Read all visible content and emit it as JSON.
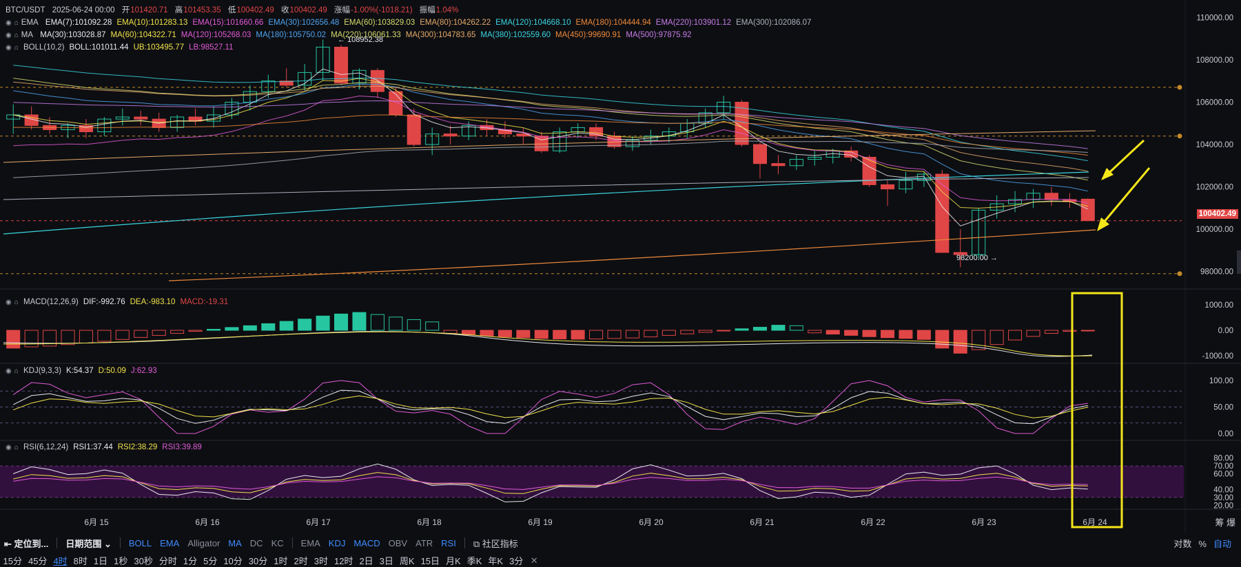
{
  "header": {
    "symbol": "BTC/USDT",
    "date": "2025-06-24 00:00",
    "open_label": "开",
    "open": "101420.71",
    "high_label": "高",
    "high": "101453.35",
    "low_label": "低",
    "low": "100402.49",
    "close_label": "收",
    "close": "100402.49",
    "change_label": "涨幅",
    "change": "-1.00%(-1018.21)",
    "amp_label": "振幅",
    "amp": "1.04%"
  },
  "ema_line": {
    "name": "EMA",
    "items": [
      {
        "text": "EMA(7):101092.28",
        "color": "#e8eaef"
      },
      {
        "text": "EMA(10):101283.13",
        "color": "#f1e34a"
      },
      {
        "text": "EMA(15):101660.66",
        "color": "#e05bd6"
      },
      {
        "text": "EMA(30):102656.48",
        "color": "#4fa4ef"
      },
      {
        "text": "EMA(60):103829.03",
        "color": "#d6dc6e"
      },
      {
        "text": "EMA(80):104262.22",
        "color": "#e5aa6b"
      },
      {
        "text": "EMA(120):104668.10",
        "color": "#3ad6e0"
      },
      {
        "text": "EMA(180):104444.94",
        "color": "#f08a3a"
      },
      {
        "text": "EMA(220):103901.12",
        "color": "#c77ee8"
      },
      {
        "text": "EMA(300):102086.07",
        "color": "#aab0ba"
      }
    ]
  },
  "ma_line": {
    "name": "MA",
    "items": [
      {
        "text": "MA(30):103028.87",
        "color": "#e8eaef"
      },
      {
        "text": "MA(60):104322.71",
        "color": "#f1e34a"
      },
      {
        "text": "MA(120):105268.03",
        "color": "#e05bd6"
      },
      {
        "text": "MA(180):105750.02",
        "color": "#4fa4ef"
      },
      {
        "text": "MA(220):106061.33",
        "color": "#d6dc6e"
      },
      {
        "text": "MA(300):104783.65",
        "color": "#e5aa6b"
      },
      {
        "text": "MA(380):102559.60",
        "color": "#3ad6e0"
      },
      {
        "text": "MA(450):99690.91",
        "color": "#f08a3a"
      },
      {
        "text": "MA(500):97875.92",
        "color": "#c77ee8"
      }
    ]
  },
  "boll_line": {
    "items": [
      {
        "text": "BOLL(10,2)",
        "color": "#c9ccd4"
      },
      {
        "text": "BOLL:101011.44",
        "color": "#e8eaef"
      },
      {
        "text": "UB:103495.77",
        "color": "#f1e34a"
      },
      {
        "text": "LB:98527.11",
        "color": "#e05bd6"
      }
    ]
  },
  "macd_line": {
    "items": [
      {
        "text": "MACD(12,26,9)",
        "color": "#c9ccd4"
      },
      {
        "text": "DIF:-992.76",
        "color": "#e8eaef"
      },
      {
        "text": "DEA:-983.10",
        "color": "#f1e34a"
      },
      {
        "text": "MACD:-19.31",
        "color": "#e04646"
      }
    ]
  },
  "kdj_line": {
    "items": [
      {
        "text": "KDJ(9,3,3)",
        "color": "#c9ccd4"
      },
      {
        "text": "K:54.37",
        "color": "#e8eaef"
      },
      {
        "text": "D:50.09",
        "color": "#f1e34a"
      },
      {
        "text": "J:62.93",
        "color": "#e05bd6"
      }
    ]
  },
  "rsi_line": {
    "items": [
      {
        "text": "RSI(6,12,24)",
        "color": "#c9ccd4"
      },
      {
        "text": "RSI1:37.44",
        "color": "#e8eaef"
      },
      {
        "text": "RSI2:38.29",
        "color": "#f1e34a"
      },
      {
        "text": "RSI3:39.89",
        "color": "#e05bd6"
      }
    ]
  },
  "price_axis": [
    "110000.00",
    "108000.00",
    "106000.00",
    "104000.00",
    "102000.00",
    "100000.00",
    "98000.00"
  ],
  "macd_axis": [
    "1000.00",
    "0.00",
    "-1000.00"
  ],
  "kdj_axis": [
    "100.00",
    "50.00",
    "0.00"
  ],
  "rsi_axis": [
    "80.00",
    "70.00",
    "60.00",
    "40.00",
    "30.00",
    "20.00"
  ],
  "x_axis": [
    "6月 15",
    "6月 16",
    "6月 17",
    "6月 18",
    "6月 19",
    "6月 20",
    "6月 21",
    "6月 22",
    "6月 23",
    "6月 24"
  ],
  "annotations": {
    "high_mark": "← 108952.38",
    "low_mark": "98200.00 →",
    "last_price": "100402.49"
  },
  "corner_label": "筹 爆",
  "toolbar": {
    "locate": "定位到...",
    "date_range": "日期范围",
    "main_indicators": [
      "BOLL",
      "EMA",
      "Alligator",
      "MA",
      "DC",
      "KC"
    ],
    "main_active": [
      "BOLL",
      "EMA",
      "MA"
    ],
    "sub_indicators": [
      "EMA",
      "KDJ",
      "MACD",
      "OBV",
      "ATR",
      "RSI"
    ],
    "sub_active": [
      "KDJ",
      "MACD",
      "RSI"
    ],
    "community": "社区指标",
    "right": [
      "对数",
      "%",
      "自动"
    ]
  },
  "intervals": {
    "items": [
      "15分",
      "45分",
      "4时",
      "8时",
      "1日",
      "1秒",
      "30秒",
      "分时",
      "1分",
      "5分",
      "10分",
      "30分",
      "1时",
      "2时",
      "3时",
      "12时",
      "2日",
      "3日",
      "周K",
      "15日",
      "月K",
      "季K",
      "年K",
      "3分"
    ],
    "active": "4时",
    "close": "✕"
  },
  "chart_data": {
    "type": "candlestick",
    "candles": [
      {
        "o": 105200,
        "h": 105900,
        "l": 104500,
        "c": 105400
      },
      {
        "o": 105400,
        "h": 105800,
        "l": 104700,
        "c": 104900
      },
      {
        "o": 104900,
        "h": 105300,
        "l": 104500,
        "c": 104700
      },
      {
        "o": 104700,
        "h": 105000,
        "l": 104300,
        "c": 104900
      },
      {
        "o": 104900,
        "h": 105200,
        "l": 104300,
        "c": 104600
      },
      {
        "o": 104600,
        "h": 105300,
        "l": 104400,
        "c": 105200
      },
      {
        "o": 105200,
        "h": 105700,
        "l": 104900,
        "c": 105300
      },
      {
        "o": 105300,
        "h": 105600,
        "l": 104900,
        "c": 105200
      },
      {
        "o": 105200,
        "h": 105500,
        "l": 104600,
        "c": 104800
      },
      {
        "o": 104800,
        "h": 105400,
        "l": 104600,
        "c": 105300
      },
      {
        "o": 105300,
        "h": 105700,
        "l": 104900,
        "c": 105100
      },
      {
        "o": 105100,
        "h": 105800,
        "l": 104800,
        "c": 105400
      },
      {
        "o": 105400,
        "h": 106200,
        "l": 105200,
        "c": 106000
      },
      {
        "o": 106000,
        "h": 106800,
        "l": 105600,
        "c": 106500
      },
      {
        "o": 106500,
        "h": 107300,
        "l": 106200,
        "c": 107000
      },
      {
        "o": 107000,
        "h": 107600,
        "l": 106700,
        "c": 106800
      },
      {
        "o": 106800,
        "h": 107800,
        "l": 106500,
        "c": 107400
      },
      {
        "o": 107400,
        "h": 108952,
        "l": 107000,
        "c": 108600
      },
      {
        "o": 108600,
        "h": 108700,
        "l": 106800,
        "c": 106900
      },
      {
        "o": 106900,
        "h": 107600,
        "l": 106600,
        "c": 107500
      },
      {
        "o": 107500,
        "h": 107600,
        "l": 106200,
        "c": 106500
      },
      {
        "o": 106500,
        "h": 106700,
        "l": 105300,
        "c": 105400
      },
      {
        "o": 105400,
        "h": 105700,
        "l": 103900,
        "c": 104000
      },
      {
        "o": 104000,
        "h": 104800,
        "l": 103500,
        "c": 104500
      },
      {
        "o": 104500,
        "h": 104900,
        "l": 104000,
        "c": 104400
      },
      {
        "o": 104400,
        "h": 105100,
        "l": 104200,
        "c": 104900
      },
      {
        "o": 104900,
        "h": 105200,
        "l": 104400,
        "c": 104700
      },
      {
        "o": 104700,
        "h": 105100,
        "l": 104300,
        "c": 104500
      },
      {
        "o": 104500,
        "h": 104800,
        "l": 104000,
        "c": 104400
      },
      {
        "o": 104400,
        "h": 104600,
        "l": 103600,
        "c": 103700
      },
      {
        "o": 103700,
        "h": 104800,
        "l": 103600,
        "c": 104600
      },
      {
        "o": 104600,
        "h": 105000,
        "l": 104300,
        "c": 104800
      },
      {
        "o": 104800,
        "h": 105000,
        "l": 104200,
        "c": 104400
      },
      {
        "o": 104400,
        "h": 104600,
        "l": 103800,
        "c": 103900
      },
      {
        "o": 103900,
        "h": 104400,
        "l": 103700,
        "c": 104200
      },
      {
        "o": 104200,
        "h": 104700,
        "l": 104000,
        "c": 104400
      },
      {
        "o": 104400,
        "h": 104800,
        "l": 104100,
        "c": 104600
      },
      {
        "o": 104600,
        "h": 105200,
        "l": 104300,
        "c": 105000
      },
      {
        "o": 105000,
        "h": 105700,
        "l": 104800,
        "c": 105500
      },
      {
        "o": 105500,
        "h": 106300,
        "l": 105200,
        "c": 106000
      },
      {
        "o": 106000,
        "h": 106100,
        "l": 103900,
        "c": 104000
      },
      {
        "o": 104000,
        "h": 104100,
        "l": 102400,
        "c": 103100
      },
      {
        "o": 103100,
        "h": 103500,
        "l": 102600,
        "c": 103000
      },
      {
        "o": 103000,
        "h": 103500,
        "l": 102800,
        "c": 103300
      },
      {
        "o": 103300,
        "h": 103700,
        "l": 103000,
        "c": 103400
      },
      {
        "o": 103400,
        "h": 103800,
        "l": 103100,
        "c": 103700
      },
      {
        "o": 103700,
        "h": 103900,
        "l": 103200,
        "c": 103400
      },
      {
        "o": 103400,
        "h": 103500,
        "l": 102000,
        "c": 102100
      },
      {
        "o": 102100,
        "h": 102300,
        "l": 101100,
        "c": 101900
      },
      {
        "o": 101900,
        "h": 102700,
        "l": 101700,
        "c": 102300
      },
      {
        "o": 102300,
        "h": 102700,
        "l": 102000,
        "c": 102600
      },
      {
        "o": 102600,
        "h": 102800,
        "l": 98900,
        "c": 98900
      },
      {
        "o": 98900,
        "h": 100000,
        "l": 98200,
        "c": 98800
      },
      {
        "o": 98800,
        "h": 101000,
        "l": 98600,
        "c": 100900
      },
      {
        "o": 100900,
        "h": 101600,
        "l": 100500,
        "c": 101200
      },
      {
        "o": 101200,
        "h": 101800,
        "l": 100800,
        "c": 101400
      },
      {
        "o": 101400,
        "h": 101900,
        "l": 101000,
        "c": 101700
      },
      {
        "o": 101700,
        "h": 102000,
        "l": 101100,
        "c": 101400
      },
      {
        "o": 101400,
        "h": 101700,
        "l": 101000,
        "c": 101300
      },
      {
        "o": 101420.71,
        "h": 101453.35,
        "l": 100402.49,
        "c": 100402.49
      }
    ],
    "macd_hist": [
      -700,
      -650,
      -620,
      -560,
      -500,
      -430,
      -360,
      -280,
      -200,
      -120,
      -40,
      40,
      110,
      180,
      260,
      350,
      440,
      560,
      640,
      700,
      620,
      520,
      420,
      330,
      -120,
      -180,
      -220,
      -260,
      -290,
      -320,
      -340,
      -350,
      -340,
      -320,
      -300,
      -260,
      -200,
      -140,
      -80,
      -20,
      60,
      120,
      200,
      180,
      -100,
      -150,
      -200,
      -250,
      -290,
      -320,
      -360,
      -700,
      -900,
      -760,
      -560,
      -380,
      -240,
      -120,
      -40,
      -19.31
    ],
    "price_range": [
      97500,
      110500
    ]
  }
}
